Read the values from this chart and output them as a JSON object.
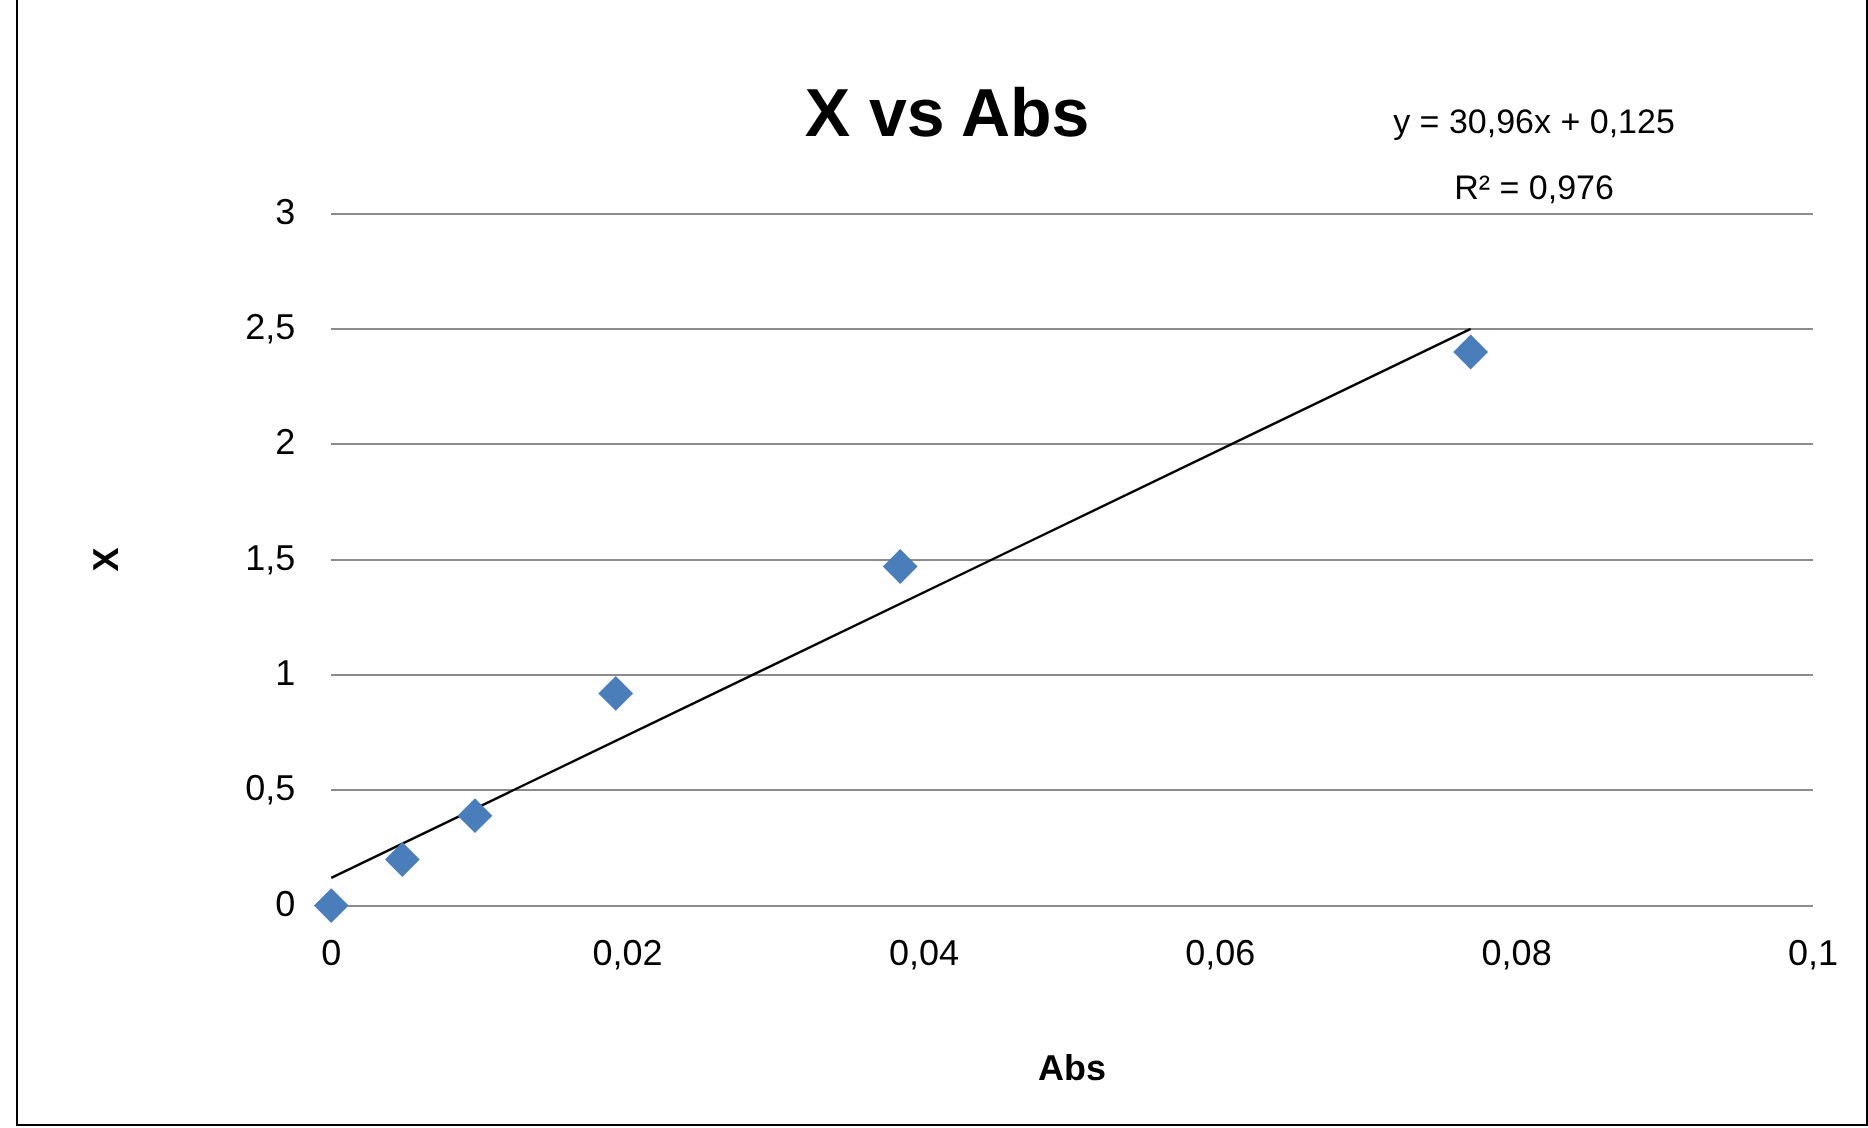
{
  "chart_data": {
    "type": "scatter",
    "title": "X vs Abs",
    "xlabel": "Abs",
    "ylabel": "X",
    "annotations": [
      "y = 30,96x + 0,125",
      "R² = 0,976"
    ],
    "xlim": [
      0,
      0.1
    ],
    "xticks": [
      0,
      {
        "value": 0.02,
        "label": "0,02"
      },
      {
        "value": 0.04,
        "label": "0,04"
      },
      {
        "value": 0.06,
        "label": "0,06"
      },
      {
        "value": 0.08,
        "label": "0,08"
      },
      {
        "value": 0.1,
        "label": "0,1"
      }
    ],
    "ylim": [
      0,
      3
    ],
    "yticks": [
      0,
      {
        "value": 0.5,
        "label": "0,5"
      },
      1,
      {
        "value": 1.5,
        "label": "1,5"
      },
      2,
      {
        "value": 2.5,
        "label": "2,5"
      },
      3
    ],
    "grid": "y",
    "legend": false,
    "series": [
      {
        "type": "scatter",
        "color": "#4a7ebb",
        "marker": "diamond",
        "x": [
          0,
          0.0048,
          0.0097,
          0.0192,
          0.0384,
          0.0769
        ],
        "values": [
          0,
          0.2,
          0.39,
          0.92,
          1.47,
          2.4
        ]
      },
      {
        "type": "line",
        "color": "#000000",
        "marker": "none",
        "line_style": "solid",
        "x": [
          0,
          0.0769
        ],
        "values": [
          0.12,
          2.5
        ]
      }
    ]
  }
}
